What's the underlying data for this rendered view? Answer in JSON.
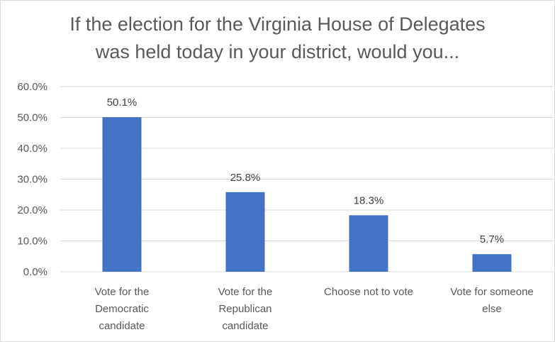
{
  "chart_data": {
    "type": "bar",
    "title_lines": [
      "If the election for the Virginia House of Delegates",
      "was held today in your district, would you..."
    ],
    "categories": [
      [
        "Vote for the",
        "Democratic",
        "candidate"
      ],
      [
        "Vote for the",
        "Republican",
        "candidate"
      ],
      [
        "Choose not to vote"
      ],
      [
        "Vote for someone",
        "else"
      ]
    ],
    "values": [
      50.1,
      25.8,
      18.3,
      5.7
    ],
    "data_labels": [
      "50.1%",
      "25.8%",
      "18.3%",
      "5.7%"
    ],
    "ylim": [
      0,
      60
    ],
    "yticks": [
      0,
      10,
      20,
      30,
      40,
      50,
      60
    ],
    "ytick_labels": [
      "0.0%",
      "10.0%",
      "20.0%",
      "30.0%",
      "40.0%",
      "50.0%",
      "60.0%"
    ],
    "grid": true,
    "colors": {
      "bar": "#4472c4",
      "grid": "#d9d9d9",
      "text": "#595959"
    }
  }
}
